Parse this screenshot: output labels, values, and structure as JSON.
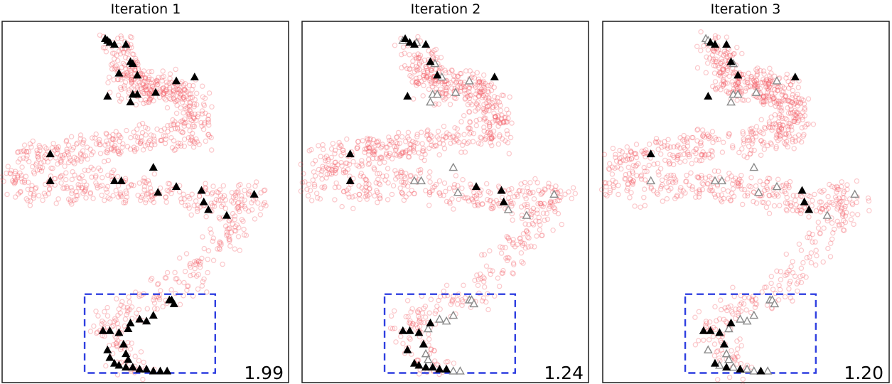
{
  "chart_data": [
    {
      "type": "scatter",
      "title": "Iteration 1",
      "score": "1.99",
      "grid": false,
      "axes_ticks": false,
      "colors": {
        "background": "#f2555e",
        "labeled": "#000000",
        "unlabeled": "#8a8a8a",
        "box": "#2f3fe0"
      },
      "highlight_box": {
        "x": [
          -2.9,
          2.8
        ],
        "y": [
          -9.1,
          -5.0
        ]
      },
      "labeled_points": [
        [
          -2.0,
          8.3
        ],
        [
          -1.9,
          8.2
        ],
        [
          -1.8,
          8.1
        ],
        [
          -1.6,
          8.0
        ],
        [
          -1.1,
          8.0
        ],
        [
          -1.4,
          6.5
        ],
        [
          -0.9,
          7.1
        ],
        [
          -0.8,
          7.0
        ],
        [
          -0.6,
          6.4
        ],
        [
          1.1,
          6.1
        ],
        [
          1.9,
          6.3
        ],
        [
          -1.9,
          5.3
        ],
        [
          -0.8,
          5.4
        ],
        [
          -0.6,
          5.4
        ],
        [
          -0.9,
          5.0
        ],
        [
          0.2,
          5.5
        ],
        [
          -4.4,
          2.3
        ],
        [
          -4.4,
          0.9
        ],
        [
          -1.6,
          0.9
        ],
        [
          -1.3,
          0.9
        ],
        [
          0.1,
          1.6
        ],
        [
          0.3,
          0.3
        ],
        [
          1.1,
          0.6
        ],
        [
          2.2,
          0.4
        ],
        [
          2.3,
          -0.2
        ],
        [
          2.5,
          -0.6
        ],
        [
          3.3,
          -0.9
        ],
        [
          4.5,
          0.2
        ],
        [
          0.8,
          -5.3
        ],
        [
          0.9,
          -5.3
        ],
        [
          1.0,
          -5.5
        ],
        [
          -1.9,
          -7.9
        ],
        [
          -2.1,
          -6.9
        ],
        [
          -1.8,
          -6.9
        ],
        [
          -1.4,
          -7.0
        ],
        [
          -1.2,
          -7.6
        ],
        [
          -1.1,
          -8.1
        ],
        [
          -1.0,
          -8.4
        ],
        [
          -0.9,
          -6.5
        ],
        [
          -0.5,
          -6.3
        ],
        [
          -0.2,
          -6.4
        ],
        [
          0.1,
          -6.1
        ],
        [
          -1.6,
          -8.6
        ],
        [
          -1.4,
          -8.7
        ],
        [
          -1.1,
          -8.8
        ],
        [
          -0.8,
          -8.8
        ],
        [
          -0.5,
          -8.9
        ],
        [
          -0.2,
          -8.9
        ],
        [
          0.1,
          -9.0
        ],
        [
          0.4,
          -9.0
        ],
        [
          0.7,
          -9.0
        ],
        [
          -1.8,
          -8.3
        ],
        [
          -1.0,
          -6.8
        ]
      ],
      "unlabeled_points": []
    },
    {
      "type": "scatter",
      "title": "Iteration 2",
      "score": "1.24",
      "grid": false,
      "axes_ticks": false,
      "colors": {
        "background": "#f2555e",
        "labeled": "#000000",
        "unlabeled": "#8a8a8a",
        "box": "#2f3fe0"
      },
      "highlight_box": {
        "x": [
          -2.9,
          2.8
        ],
        "y": [
          -9.1,
          -5.0
        ]
      },
      "labeled_points": [
        [
          -2.0,
          8.3
        ],
        [
          -1.8,
          8.1
        ],
        [
          -1.6,
          8.0
        ],
        [
          -1.1,
          8.0
        ],
        [
          -0.9,
          7.1
        ],
        [
          -0.6,
          6.4
        ],
        [
          1.9,
          6.3
        ],
        [
          -1.9,
          5.3
        ],
        [
          -4.4,
          2.3
        ],
        [
          -4.4,
          0.9
        ],
        [
          1.1,
          0.6
        ],
        [
          2.2,
          0.4
        ],
        [
          2.3,
          -0.2
        ],
        [
          -1.9,
          -7.9
        ],
        [
          -2.1,
          -6.9
        ],
        [
          -1.8,
          -6.9
        ],
        [
          -1.4,
          -7.0
        ],
        [
          -1.2,
          -7.6
        ],
        [
          -0.9,
          -6.5
        ],
        [
          -1.6,
          -8.6
        ],
        [
          -1.4,
          -8.7
        ],
        [
          -1.1,
          -8.8
        ],
        [
          -0.8,
          -8.8
        ],
        [
          -0.5,
          -8.9
        ],
        [
          -0.2,
          -8.9
        ]
      ],
      "unlabeled_points": [
        [
          -2.1,
          8.2
        ],
        [
          -1.5,
          8.1
        ],
        [
          -0.7,
          7.0
        ],
        [
          -0.4,
          6.3
        ],
        [
          0.8,
          6.1
        ],
        [
          -0.8,
          5.4
        ],
        [
          -0.6,
          5.4
        ],
        [
          -0.9,
          5.0
        ],
        [
          0.2,
          5.5
        ],
        [
          -1.6,
          0.9
        ],
        [
          -1.3,
          0.9
        ],
        [
          0.1,
          1.6
        ],
        [
          0.3,
          0.3
        ],
        [
          2.5,
          -0.6
        ],
        [
          4.5,
          0.2
        ],
        [
          3.3,
          -0.9
        ],
        [
          0.8,
          -5.3
        ],
        [
          0.9,
          -5.3
        ],
        [
          1.0,
          -5.5
        ],
        [
          -1.1,
          -8.1
        ],
        [
          -1.0,
          -8.4
        ],
        [
          -0.5,
          -6.3
        ],
        [
          -0.2,
          -6.4
        ],
        [
          0.1,
          -6.1
        ],
        [
          0.1,
          -9.0
        ],
        [
          0.4,
          -9.0
        ],
        [
          -1.0,
          -6.8
        ]
      ]
    },
    {
      "type": "scatter",
      "title": "Iteration 3",
      "score": "1.20",
      "grid": false,
      "axes_ticks": false,
      "colors": {
        "background": "#f2555e",
        "labeled": "#000000",
        "unlabeled": "#8a8a8a",
        "box": "#2f3fe0"
      },
      "highlight_box": {
        "x": [
          -2.9,
          2.8
        ],
        "y": [
          -9.1,
          -5.0
        ]
      },
      "labeled_points": [
        [
          -1.8,
          8.1
        ],
        [
          -1.6,
          8.0
        ],
        [
          -1.1,
          8.0
        ],
        [
          -0.9,
          7.1
        ],
        [
          -0.6,
          6.4
        ],
        [
          1.9,
          6.3
        ],
        [
          -1.9,
          5.3
        ],
        [
          -4.4,
          2.3
        ],
        [
          2.2,
          0.4
        ],
        [
          2.3,
          -0.2
        ],
        [
          2.5,
          -0.6
        ],
        [
          -2.1,
          -6.9
        ],
        [
          -1.8,
          -6.9
        ],
        [
          -1.4,
          -7.0
        ],
        [
          -1.2,
          -7.6
        ],
        [
          -0.9,
          -6.5
        ],
        [
          -1.6,
          -8.6
        ],
        [
          -1.1,
          -8.8
        ],
        [
          -0.5,
          -8.9
        ],
        [
          0.4,
          -9.0
        ]
      ],
      "unlabeled_points": [
        [
          -2.0,
          8.3
        ],
        [
          -1.9,
          8.2
        ],
        [
          -0.8,
          7.0
        ],
        [
          1.1,
          6.1
        ],
        [
          -0.8,
          5.4
        ],
        [
          -0.6,
          5.4
        ],
        [
          -0.9,
          5.0
        ],
        [
          0.2,
          5.5
        ],
        [
          -4.4,
          0.9
        ],
        [
          -1.6,
          0.9
        ],
        [
          -1.3,
          0.9
        ],
        [
          0.1,
          1.6
        ],
        [
          0.3,
          0.3
        ],
        [
          1.1,
          0.6
        ],
        [
          3.3,
          -0.9
        ],
        [
          4.5,
          0.2
        ],
        [
          0.8,
          -5.3
        ],
        [
          0.9,
          -5.3
        ],
        [
          1.0,
          -5.5
        ],
        [
          -1.9,
          -7.9
        ],
        [
          -1.1,
          -8.1
        ],
        [
          -1.0,
          -8.4
        ],
        [
          -0.5,
          -6.3
        ],
        [
          -0.2,
          -6.4
        ],
        [
          0.1,
          -6.1
        ],
        [
          -1.4,
          -8.7
        ],
        [
          -0.8,
          -8.8
        ],
        [
          -0.2,
          -8.9
        ],
        [
          0.1,
          -9.0
        ],
        [
          0.7,
          -9.0
        ],
        [
          -1.0,
          -6.8
        ]
      ]
    }
  ]
}
